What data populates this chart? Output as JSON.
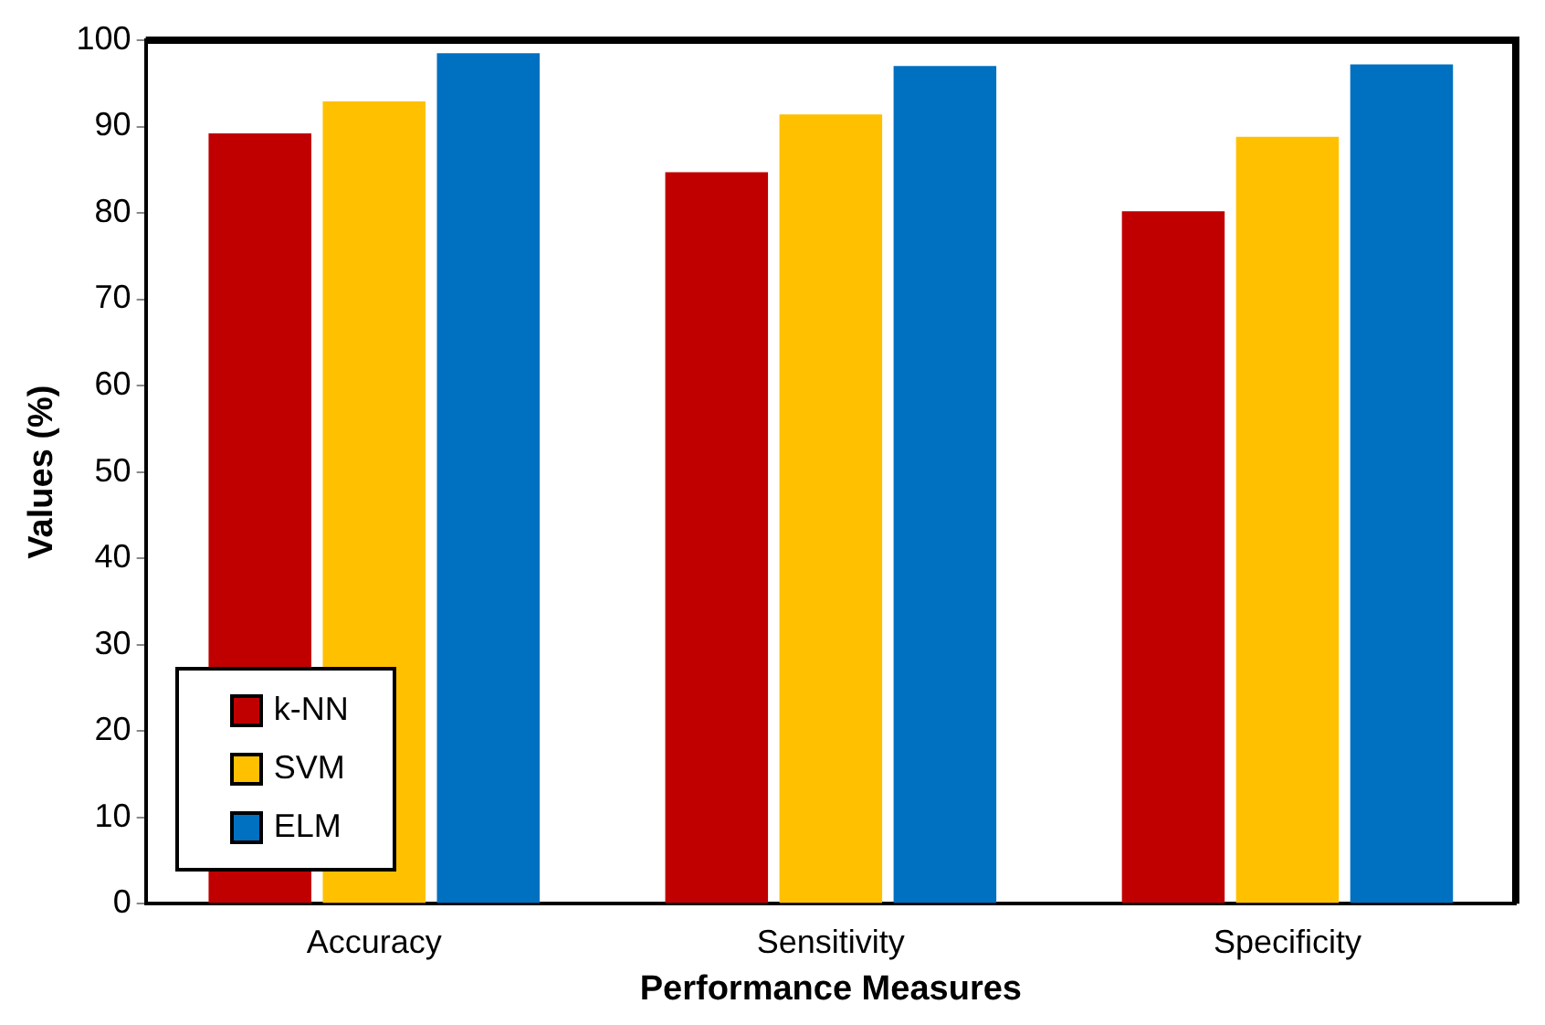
{
  "chart_data": {
    "type": "bar",
    "xlabel": "Performance Measures",
    "ylabel": "Values (%)",
    "categories": [
      "Accuracy",
      "Sensitivity",
      "Specificity"
    ],
    "series": [
      {
        "name": "k-NN",
        "color": "#c00000",
        "values": [
          89.2,
          84.7,
          80.2
        ]
      },
      {
        "name": "SVM",
        "color": "#ffc000",
        "values": [
          92.9,
          91.4,
          88.8
        ]
      },
      {
        "name": "ELM",
        "color": "#0070c0",
        "values": [
          98.5,
          97,
          97.2
        ]
      }
    ],
    "ylim": [
      0,
      100
    ],
    "yticks": [
      0,
      10,
      20,
      30,
      40,
      50,
      60,
      70,
      80,
      90,
      100
    ],
    "grid": false,
    "legend": "bottom left"
  }
}
